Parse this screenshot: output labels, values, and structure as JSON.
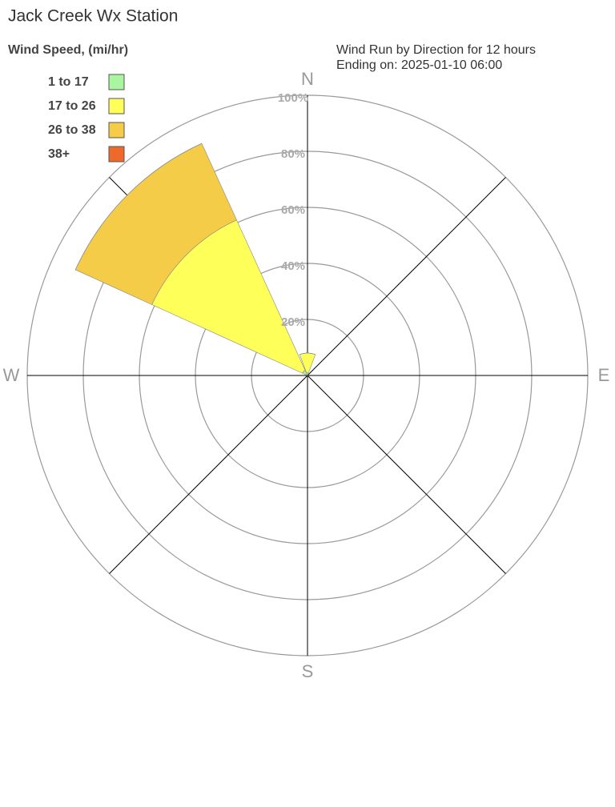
{
  "chart_data": {
    "type": "windrose",
    "title": "Jack Creek Wx Station",
    "subtitle": [
      "Wind Run by Direction for 12 hours",
      "Ending on: 2025-01-10 06:00"
    ],
    "legend_title": "Wind Speed, (mi/hr)",
    "directions": [
      0,
      45,
      90,
      135,
      180,
      225,
      270,
      315
    ],
    "series": [
      {
        "name": "1 to 17",
        "color": "#aaf5a0",
        "values": [
          1,
          0,
          0,
          0,
          0,
          0,
          0,
          2
        ]
      },
      {
        "name": "17 to 26",
        "color": "#ffff5a",
        "values": [
          7,
          0,
          0,
          0,
          0,
          0,
          0,
          59
        ]
      },
      {
        "name": "26 to 38",
        "color": "#f5cc48",
        "values": [
          0,
          0,
          0,
          0,
          0,
          0,
          0,
          30
        ]
      },
      {
        "name": "38+",
        "color": "#ee6a2a",
        "values": [
          0,
          0,
          0,
          0,
          0,
          0,
          0,
          0
        ]
      }
    ],
    "rlim": [
      0,
      100
    ],
    "rticks": [
      {
        "value": 20,
        "label": "20%"
      },
      {
        "value": 40,
        "label": "40%"
      },
      {
        "value": 60,
        "label": "60%"
      },
      {
        "value": 80,
        "label": "80%"
      },
      {
        "value": 100,
        "label": "100%"
      }
    ],
    "angle_ticks": [
      {
        "value": 0,
        "label": "N"
      },
      {
        "value": 90,
        "label": "E"
      },
      {
        "value": 180,
        "label": "S"
      },
      {
        "value": 270,
        "label": "W"
      }
    ],
    "grid": true
  }
}
